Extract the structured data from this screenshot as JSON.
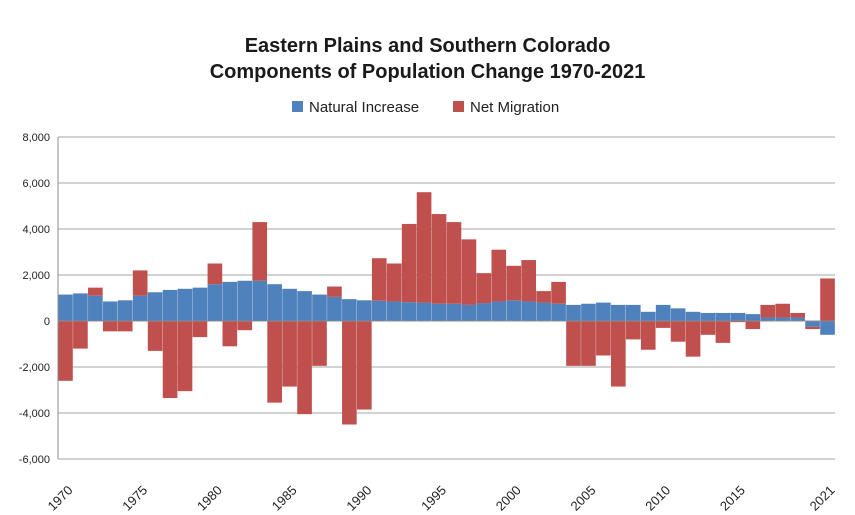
{
  "chart_data": {
    "type": "bar",
    "stacked": true,
    "title_line1": "Eastern Plains and Southern Colorado",
    "title_line2": "Components of Population Change 1970-2021",
    "xlabel": "",
    "ylabel": "",
    "ylim": [
      -6000,
      8000
    ],
    "y_ticks": [
      8000,
      6000,
      4000,
      2000,
      0,
      -2000,
      -4000,
      -6000
    ],
    "y_tick_labels": [
      "8,000",
      "6,000",
      "4,000",
      "2,000",
      "0",
      "-2,000",
      "-4,000",
      "-6,000"
    ],
    "x_tick_labels": [
      "1970",
      "1975",
      "1980",
      "1985",
      "1990",
      "1995",
      "2000",
      "2005",
      "2010",
      "2015",
      "2021"
    ],
    "x_tick_years": [
      1970,
      1975,
      1980,
      1985,
      1990,
      1995,
      2000,
      2005,
      2010,
      2015,
      2021
    ],
    "grid": true,
    "legend_position": "top-center",
    "categories": [
      1970,
      1971,
      1972,
      1973,
      1974,
      1975,
      1976,
      1977,
      1978,
      1979,
      1980,
      1981,
      1982,
      1983,
      1984,
      1985,
      1986,
      1987,
      1988,
      1989,
      1990,
      1991,
      1992,
      1993,
      1994,
      1995,
      1996,
      1997,
      1998,
      1999,
      2000,
      2001,
      2002,
      2003,
      2004,
      2005,
      2006,
      2007,
      2008,
      2009,
      2010,
      2011,
      2012,
      2013,
      2014,
      2015,
      2016,
      2017,
      2018,
      2019,
      2020,
      2021
    ],
    "series": [
      {
        "name": "Natural Increase",
        "color": "#4f81bd",
        "values": [
          1150,
          1200,
          1100,
          850,
          900,
          1100,
          1250,
          1350,
          1400,
          1450,
          1600,
          1700,
          1750,
          1750,
          1600,
          1400,
          1300,
          1150,
          1050,
          950,
          900,
          880,
          850,
          820,
          800,
          750,
          750,
          700,
          780,
          850,
          900,
          850,
          800,
          750,
          700,
          750,
          800,
          700,
          700,
          400,
          700,
          550,
          400,
          350,
          350,
          350,
          300,
          150,
          150,
          150,
          -250,
          -600
        ],
        "labels_net": "value"
      },
      {
        "name": "Net Migration",
        "color": "#c0504d",
        "values": [
          -2600,
          -1200,
          350,
          -450,
          -450,
          1100,
          -1300,
          -3350,
          -3050,
          -700,
          900,
          -1100,
          -400,
          2550,
          -3550,
          -2850,
          -4050,
          -1950,
          450,
          -4500,
          -3850,
          1850,
          1650,
          3400,
          4800,
          3900,
          3550,
          2850,
          1300,
          2250,
          1500,
          1800,
          500,
          950,
          -1950,
          -1950,
          -1500,
          -2850,
          -800,
          -1250,
          -300,
          -900,
          -1550,
          -600,
          -950,
          -50,
          -350,
          550,
          600,
          200,
          -100,
          1850
        ]
      }
    ]
  }
}
